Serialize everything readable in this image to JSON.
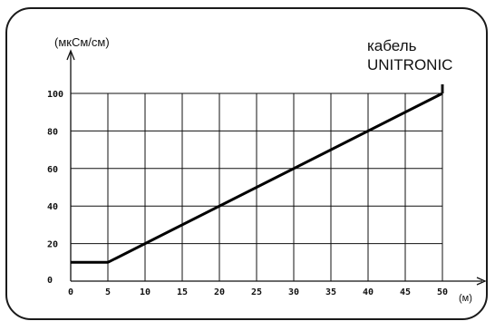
{
  "chart_data": {
    "type": "line",
    "ylabel": "(мкСм/см)",
    "xlabel": "(м)",
    "annotation": [
      "кабель",
      "UNITRONIC"
    ],
    "x_ticks": [
      "0",
      "5",
      "10",
      "15",
      "20",
      "25",
      "30",
      "35",
      "40",
      "45",
      "50"
    ],
    "y_ticks": [
      "0",
      "20",
      "40",
      "60",
      "80",
      "100"
    ],
    "xlim": [
      0,
      50
    ],
    "ylim": [
      0,
      100
    ],
    "grid": true,
    "series": [
      {
        "x": [
          0,
          5,
          50
        ],
        "y": [
          10,
          10,
          100
        ]
      }
    ],
    "line_color": "#000000",
    "grid_color": "#111111"
  }
}
